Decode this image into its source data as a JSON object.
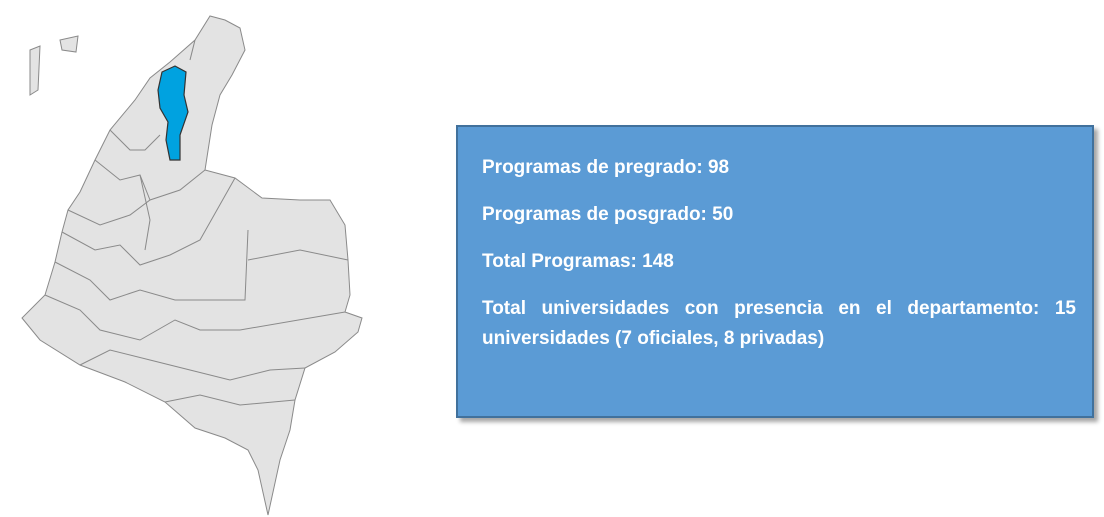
{
  "info_box": {
    "lines": [
      "Programas de pregrado: 98",
      "Programas de posgrado: 50",
      "Total Programas: 148",
      "Total universidades con presencia en el departamento: 15 universidades (7 oficiales, 8 privadas)"
    ]
  }
}
